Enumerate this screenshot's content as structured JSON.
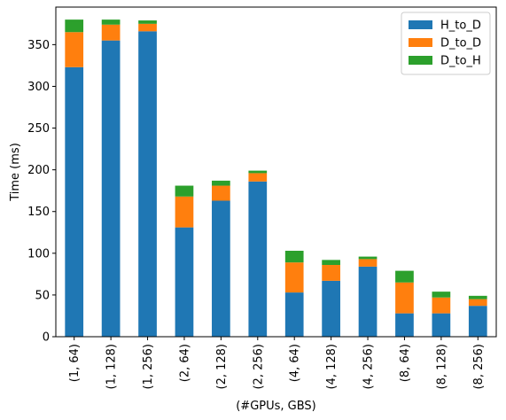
{
  "chart_data": {
    "type": "bar",
    "stacked": true,
    "title": "",
    "xlabel": "(#GPUs, GBS)",
    "ylabel": "Time (ms)",
    "ylim": [
      0,
      395
    ],
    "yticks": [
      0,
      50,
      100,
      150,
      200,
      250,
      300,
      350
    ],
    "categories": [
      "(1, 64)",
      "(1, 128)",
      "(1, 256)",
      "(2, 64)",
      "(2, 128)",
      "(2, 256)",
      "(4, 64)",
      "(4, 128)",
      "(4, 256)",
      "(8, 64)",
      "(8, 128)",
      "(8, 256)"
    ],
    "series": [
      {
        "name": "H_to_D",
        "color": "#1f77b4",
        "values": [
          323,
          355,
          366,
          131,
          163,
          186,
          53,
          67,
          84,
          28,
          28,
          37
        ]
      },
      {
        "name": "D_to_D",
        "color": "#ff7f0e",
        "values": [
          42,
          19,
          9,
          37,
          18,
          10,
          36,
          19,
          9,
          37,
          19,
          8
        ]
      },
      {
        "name": "D_to_H",
        "color": "#2ca02c",
        "values": [
          15,
          6,
          4,
          13,
          6,
          3,
          14,
          6,
          3,
          14,
          7,
          4
        ]
      }
    ],
    "legend_position": "top-right",
    "grid": false
  }
}
